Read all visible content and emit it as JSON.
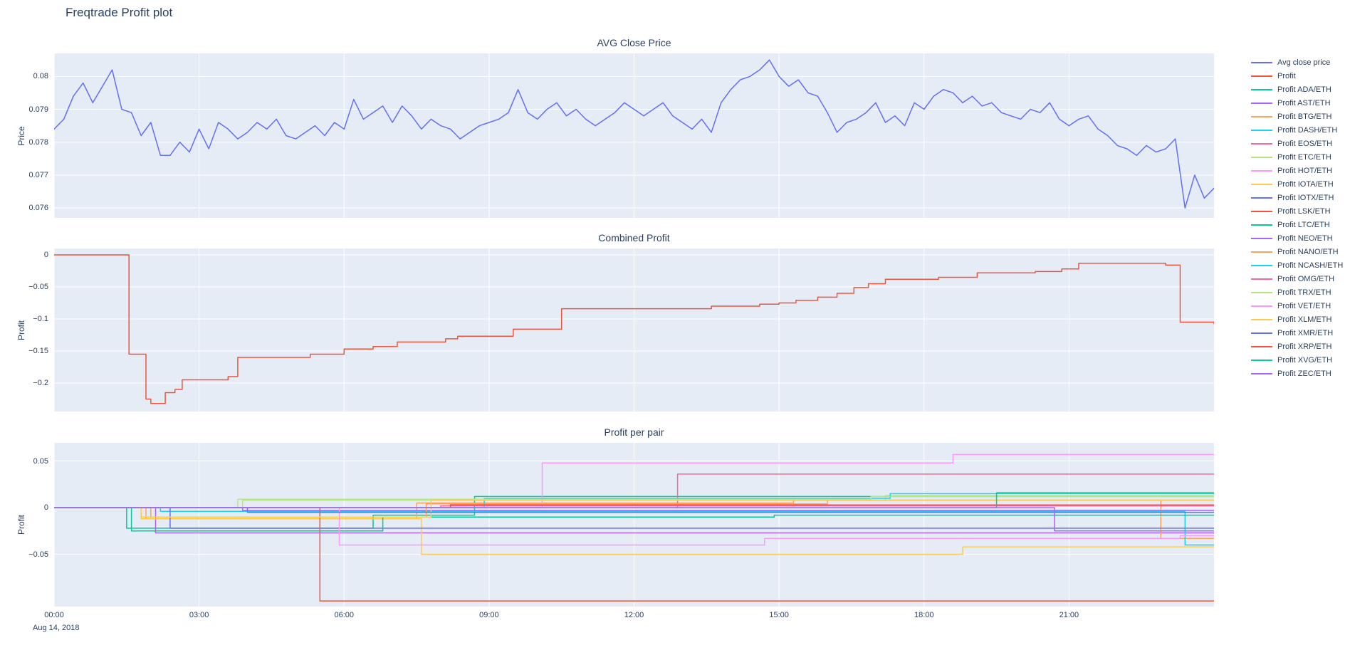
{
  "title": "Freqtrade Profit plot",
  "date_label": "Aug 14, 2018",
  "colors": {
    "text": "#2a3f5f",
    "plot_bg": "#e5ecf6",
    "grid": "#ffffff"
  },
  "x_axis": {
    "range_hours": [
      0,
      24
    ],
    "tick_hours": [
      0,
      3,
      6,
      9,
      12,
      15,
      18,
      21
    ],
    "tick_labels": [
      "00:00",
      "03:00",
      "06:00",
      "09:00",
      "12:00",
      "15:00",
      "18:00",
      "21:00"
    ]
  },
  "legend": {
    "items": [
      {
        "label": "Avg close price",
        "color": "#636efa"
      },
      {
        "label": "Profit",
        "color": "#ef553b"
      },
      {
        "label": "Profit ADA/ETH",
        "color": "#00cc96"
      },
      {
        "label": "Profit AST/ETH",
        "color": "#ab63fa"
      },
      {
        "label": "Profit BTG/ETH",
        "color": "#ffa15a"
      },
      {
        "label": "Profit DASH/ETH",
        "color": "#19d3f3"
      },
      {
        "label": "Profit EOS/ETH",
        "color": "#ff6692"
      },
      {
        "label": "Profit ETC/ETH",
        "color": "#b6e880"
      },
      {
        "label": "Profit HOT/ETH",
        "color": "#ff97ff"
      },
      {
        "label": "Profit IOTA/ETH",
        "color": "#fecb52"
      },
      {
        "label": "Profit IOTX/ETH",
        "color": "#636efa"
      },
      {
        "label": "Profit LSK/ETH",
        "color": "#ef553b"
      },
      {
        "label": "Profit LTC/ETH",
        "color": "#00cc96"
      },
      {
        "label": "Profit NEO/ETH",
        "color": "#ab63fa"
      },
      {
        "label": "Profit NANO/ETH",
        "color": "#ffa15a"
      },
      {
        "label": "Profit NCASH/ETH",
        "color": "#19d3f3"
      },
      {
        "label": "Profit OMG/ETH",
        "color": "#ff6692"
      },
      {
        "label": "Profit TRX/ETH",
        "color": "#b6e880"
      },
      {
        "label": "Profit VET/ETH",
        "color": "#ff97ff"
      },
      {
        "label": "Profit XLM/ETH",
        "color": "#fecb52"
      },
      {
        "label": "Profit XMR/ETH",
        "color": "#636efa"
      },
      {
        "label": "Profit XRP/ETH",
        "color": "#ef553b"
      },
      {
        "label": "Profit XVG/ETH",
        "color": "#00cc96"
      },
      {
        "label": "Profit ZEC/ETH",
        "color": "#ab63fa"
      }
    ]
  },
  "chart_data": [
    {
      "type": "line",
      "title": "AVG Close Price",
      "ylabel": "Price",
      "series_name": "Avg close price",
      "color": "#636efa",
      "ylim": [
        0.0757,
        0.0807
      ],
      "yticks": [
        {
          "v": 0.08,
          "label": "0.08"
        },
        {
          "v": 0.079,
          "label": "0.079"
        },
        {
          "v": 0.078,
          "label": "0.078"
        },
        {
          "v": 0.077,
          "label": "0.077"
        },
        {
          "v": 0.076,
          "label": "0.076"
        }
      ],
      "x_start_hour": 0,
      "x_step_hours": 0.2,
      "values": [
        0.0784,
        0.0787,
        0.0794,
        0.0798,
        0.0792,
        0.0797,
        0.0802,
        0.079,
        0.0789,
        0.0782,
        0.0786,
        0.0776,
        0.0776,
        0.078,
        0.0777,
        0.0784,
        0.0778,
        0.0786,
        0.0784,
        0.0781,
        0.0783,
        0.0786,
        0.0784,
        0.0787,
        0.0782,
        0.0781,
        0.0783,
        0.0785,
        0.0782,
        0.0786,
        0.0784,
        0.0793,
        0.0787,
        0.0789,
        0.0791,
        0.0786,
        0.0791,
        0.0788,
        0.0784,
        0.0787,
        0.0785,
        0.0784,
        0.0781,
        0.0783,
        0.0785,
        0.0786,
        0.0787,
        0.0789,
        0.0796,
        0.0789,
        0.0787,
        0.079,
        0.0792,
        0.0788,
        0.079,
        0.0787,
        0.0785,
        0.0787,
        0.0789,
        0.0792,
        0.079,
        0.0788,
        0.079,
        0.0792,
        0.0788,
        0.0786,
        0.0784,
        0.0787,
        0.0783,
        0.0792,
        0.0796,
        0.0799,
        0.08,
        0.0802,
        0.0805,
        0.08,
        0.0797,
        0.0799,
        0.0795,
        0.0794,
        0.0789,
        0.0783,
        0.0786,
        0.0787,
        0.0789,
        0.0792,
        0.0786,
        0.0788,
        0.0785,
        0.0792,
        0.079,
        0.0794,
        0.0796,
        0.0795,
        0.0792,
        0.0794,
        0.0791,
        0.0792,
        0.0789,
        0.0788,
        0.0787,
        0.079,
        0.0789,
        0.0792,
        0.0787,
        0.0785,
        0.0787,
        0.0788,
        0.0784,
        0.0782,
        0.0779,
        0.0778,
        0.0776,
        0.0779,
        0.0777,
        0.0778,
        0.0781,
        0.076,
        0.077,
        0.0763,
        0.0766
      ]
    },
    {
      "type": "step",
      "title": "Combined Profit",
      "ylabel": "Profit",
      "series_name": "Profit",
      "color": "#ef553b",
      "ylim": [
        -0.2444,
        0.01
      ],
      "yticks": [
        {
          "v": 0,
          "label": "0"
        },
        {
          "v": -0.05,
          "label": "−0.05"
        },
        {
          "v": -0.1,
          "label": "−0.1"
        },
        {
          "v": -0.15,
          "label": "−0.15"
        },
        {
          "v": -0.2,
          "label": "−0.2"
        }
      ],
      "steps": [
        [
          0,
          0
        ],
        [
          1.55,
          -0.155
        ],
        [
          1.9,
          -0.225
        ],
        [
          2.0,
          -0.232
        ],
        [
          2.3,
          -0.215
        ],
        [
          2.5,
          -0.21
        ],
        [
          2.65,
          -0.195
        ],
        [
          3.6,
          -0.19
        ],
        [
          3.8,
          -0.16
        ],
        [
          5.3,
          -0.155
        ],
        [
          6.0,
          -0.147
        ],
        [
          6.6,
          -0.143
        ],
        [
          7.1,
          -0.136
        ],
        [
          8.1,
          -0.131
        ],
        [
          8.35,
          -0.127
        ],
        [
          9.5,
          -0.116
        ],
        [
          10.5,
          -0.084
        ],
        [
          13.6,
          -0.08
        ],
        [
          14.6,
          -0.077
        ],
        [
          15.0,
          -0.075
        ],
        [
          15.35,
          -0.071
        ],
        [
          15.8,
          -0.066
        ],
        [
          16.2,
          -0.06
        ],
        [
          16.55,
          -0.051
        ],
        [
          16.85,
          -0.045
        ],
        [
          17.2,
          -0.038
        ],
        [
          18.3,
          -0.035
        ],
        [
          19.1,
          -0.028
        ],
        [
          20.3,
          -0.026
        ],
        [
          20.85,
          -0.022
        ],
        [
          21.2,
          -0.013
        ],
        [
          23.0,
          -0.016
        ],
        [
          23.3,
          -0.105
        ],
        [
          24,
          -0.108
        ]
      ]
    },
    {
      "type": "step-multi",
      "title": "Profit per pair",
      "ylabel": "Profit",
      "ylim": [
        -0.106,
        0.0695
      ],
      "yticks": [
        {
          "v": 0.05,
          "label": "0.05"
        },
        {
          "v": 0,
          "label": "0"
        },
        {
          "v": -0.05,
          "label": "−0.05"
        }
      ],
      "series": [
        {
          "name": "Profit ADA/ETH",
          "color": "#00cc96",
          "steps": [
            [
              0,
              0
            ],
            [
              1.5,
              -0.022
            ],
            [
              6.6,
              -0.008
            ],
            [
              8.7,
              0.012
            ],
            [
              24,
              0.012
            ]
          ]
        },
        {
          "name": "Profit AST/ETH",
          "color": "#ab63fa",
          "steps": [
            [
              0,
              0
            ],
            [
              2.1,
              -0.027
            ],
            [
              24,
              -0.027
            ]
          ]
        },
        {
          "name": "Profit BTG/ETH",
          "color": "#ffa15a",
          "steps": [
            [
              0,
              0
            ],
            [
              1.9,
              -0.012
            ],
            [
              7.5,
              0.005
            ],
            [
              15.3,
              0.008
            ],
            [
              22.9,
              -0.033
            ],
            [
              24,
              -0.033
            ]
          ]
        },
        {
          "name": "Profit DASH/ETH",
          "color": "#19d3f3",
          "steps": [
            [
              0,
              0
            ],
            [
              2.2,
              -0.004
            ],
            [
              23.4,
              -0.04
            ],
            [
              24,
              -0.04
            ]
          ]
        },
        {
          "name": "Profit EOS/ETH",
          "color": "#ff6692",
          "steps": [
            [
              0,
              0
            ],
            [
              12.9,
              0.036
            ],
            [
              24,
              0.036
            ]
          ]
        },
        {
          "name": "Profit ETC/ETH",
          "color": "#b6e880",
          "steps": [
            [
              0,
              0
            ],
            [
              3.9,
              0.008
            ],
            [
              17.2,
              0.013
            ],
            [
              24,
              0.013
            ]
          ]
        },
        {
          "name": "Profit HOT/ETH",
          "color": "#ff97ff",
          "steps": [
            [
              0,
              0
            ],
            [
              10.1,
              0.048
            ],
            [
              18.6,
              0.057
            ],
            [
              24,
              0.057
            ]
          ]
        },
        {
          "name": "Profit IOTA/ETH",
          "color": "#fecb52",
          "steps": [
            [
              0,
              0
            ],
            [
              1.8,
              -0.012
            ],
            [
              7.6,
              -0.05
            ],
            [
              18.8,
              -0.042
            ],
            [
              24,
              -0.042
            ]
          ]
        },
        {
          "name": "Profit IOTX/ETH",
          "color": "#636efa",
          "steps": [
            [
              0,
              0
            ],
            [
              2.4,
              -0.022
            ],
            [
              24,
              -0.022
            ]
          ]
        },
        {
          "name": "Profit LSK/ETH",
          "color": "#ef553b",
          "steps": [
            [
              0,
              0
            ],
            [
              5.5,
              -0.1
            ],
            [
              24,
              -0.1
            ]
          ]
        },
        {
          "name": "Profit LTC/ETH",
          "color": "#00cc96",
          "steps": [
            [
              0,
              0
            ],
            [
              1.6,
              -0.025
            ],
            [
              6.8,
              -0.01
            ],
            [
              14.9,
              -0.008
            ],
            [
              24,
              -0.008
            ]
          ]
        },
        {
          "name": "Profit NEO/ETH",
          "color": "#ab63fa",
          "steps": [
            [
              0,
              0
            ],
            [
              3.9,
              -0.003
            ],
            [
              24,
              -0.003
            ]
          ]
        },
        {
          "name": "Profit NANO/ETH",
          "color": "#ffa15a",
          "steps": [
            [
              0,
              0
            ],
            [
              2.0,
              -0.01
            ],
            [
              7.7,
              0.004
            ],
            [
              16.0,
              0.008
            ],
            [
              24,
              0.008
            ]
          ]
        },
        {
          "name": "Profit NCASH/ETH",
          "color": "#19d3f3",
          "steps": [
            [
              0,
              0
            ],
            [
              8.9,
              0.01
            ],
            [
              17.3,
              0.015
            ],
            [
              24,
              0.015
            ]
          ]
        },
        {
          "name": "Profit OMG/ETH",
          "color": "#ff6692",
          "steps": [
            [
              0,
              0
            ],
            [
              8.0,
              0.002
            ],
            [
              24,
              0.002
            ]
          ]
        },
        {
          "name": "Profit TRX/ETH",
          "color": "#b6e880",
          "steps": [
            [
              0,
              0
            ],
            [
              3.8,
              0.009
            ],
            [
              16.9,
              0.012
            ],
            [
              24,
              0.012
            ]
          ]
        },
        {
          "name": "Profit VET/ETH",
          "color": "#ff97ff",
          "steps": [
            [
              0,
              0
            ],
            [
              5.9,
              -0.04
            ],
            [
              14.7,
              -0.033
            ],
            [
              23.3,
              -0.03
            ],
            [
              24,
              -0.03
            ]
          ]
        },
        {
          "name": "Profit XLM/ETH",
          "color": "#fecb52",
          "steps": [
            [
              0,
              0
            ],
            [
              1.8,
              -0.01
            ],
            [
              7.8,
              0.008
            ],
            [
              24,
              0.008
            ]
          ]
        },
        {
          "name": "Profit XMR/ETH",
          "color": "#636efa",
          "steps": [
            [
              0,
              0
            ],
            [
              4.0,
              -0.005
            ],
            [
              24,
              -0.005
            ]
          ]
        },
        {
          "name": "Profit XRP/ETH",
          "color": "#ef553b",
          "steps": [
            [
              0,
              0
            ],
            [
              8.2,
              0.003
            ],
            [
              24,
              0.003
            ]
          ]
        },
        {
          "name": "Profit XVG/ETH",
          "color": "#00cc96",
          "steps": [
            [
              0,
              0
            ],
            [
              19.5,
              0.016
            ],
            [
              24,
              0.016
            ]
          ]
        },
        {
          "name": "Profit ZEC/ETH",
          "color": "#ab63fa",
          "steps": [
            [
              0,
              0
            ],
            [
              20.7,
              -0.025
            ],
            [
              24,
              -0.025
            ]
          ]
        }
      ]
    }
  ]
}
